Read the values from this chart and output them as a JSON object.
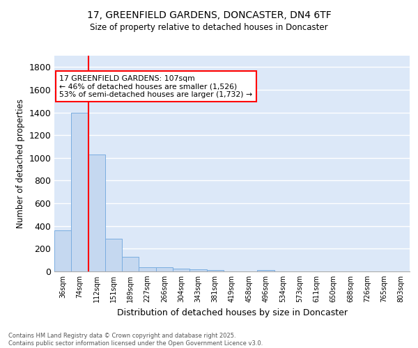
{
  "title1": "17, GREENFIELD GARDENS, DONCASTER, DN4 6TF",
  "title2": "Size of property relative to detached houses in Doncaster",
  "xlabel": "Distribution of detached houses by size in Doncaster",
  "ylabel": "Number of detached properties",
  "bar_color": "#c5d8f0",
  "bar_edge_color": "#7aade0",
  "background_color": "#dce8f8",
  "grid_color": "#ffffff",
  "categories": [
    "36sqm",
    "74sqm",
    "112sqm",
    "151sqm",
    "189sqm",
    "227sqm",
    "266sqm",
    "304sqm",
    "343sqm",
    "381sqm",
    "419sqm",
    "458sqm",
    "496sqm",
    "534sqm",
    "573sqm",
    "611sqm",
    "650sqm",
    "688sqm",
    "726sqm",
    "765sqm",
    "803sqm"
  ],
  "values": [
    360,
    1400,
    1030,
    290,
    130,
    38,
    35,
    25,
    18,
    15,
    0,
    0,
    15,
    0,
    0,
    0,
    0,
    0,
    0,
    0,
    0
  ],
  "ylim": [
    0,
    1900
  ],
  "yticks": [
    0,
    200,
    400,
    600,
    800,
    1000,
    1200,
    1400,
    1600,
    1800
  ],
  "red_line_x": 2.0,
  "annotation_text": "17 GREENFIELD GARDENS: 107sqm\n← 46% of detached houses are smaller (1,526)\n53% of semi-detached houses are larger (1,732) →",
  "footer_line1": "Contains HM Land Registry data © Crown copyright and database right 2025.",
  "footer_line2": "Contains public sector information licensed under the Open Government Licence v3.0."
}
